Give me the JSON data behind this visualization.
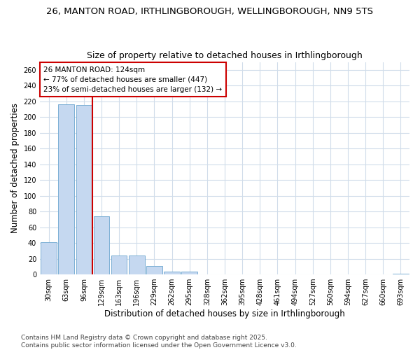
{
  "title_line1": "26, MANTON ROAD, IRTHLINGBOROUGH, WELLINGBOROUGH, NN9 5TS",
  "title_line2": "Size of property relative to detached houses in Irthlingborough",
  "xlabel": "Distribution of detached houses by size in Irthlingborough",
  "ylabel": "Number of detached properties",
  "categories": [
    "30sqm",
    "63sqm",
    "96sqm",
    "129sqm",
    "163sqm",
    "196sqm",
    "229sqm",
    "262sqm",
    "295sqm",
    "328sqm",
    "362sqm",
    "395sqm",
    "428sqm",
    "461sqm",
    "494sqm",
    "527sqm",
    "560sqm",
    "594sqm",
    "627sqm",
    "660sqm",
    "693sqm"
  ],
  "values": [
    41,
    216,
    215,
    74,
    24,
    24,
    11,
    4,
    4,
    0,
    0,
    0,
    0,
    0,
    0,
    0,
    0,
    0,
    0,
    0,
    1
  ],
  "bar_color": "#c5d8f0",
  "bar_edge_color": "#7bafd4",
  "vline_color": "#cc0000",
  "vline_x": 2.5,
  "annotation_text": "26 MANTON ROAD: 124sqm\n← 77% of detached houses are smaller (447)\n23% of semi-detached houses are larger (132) →",
  "annotation_box_color": "#ffffff",
  "annotation_box_edge": "#cc0000",
  "ylim": [
    0,
    270
  ],
  "yticks": [
    0,
    20,
    40,
    60,
    80,
    100,
    120,
    140,
    160,
    180,
    200,
    220,
    240,
    260
  ],
  "footer_line1": "Contains HM Land Registry data © Crown copyright and database right 2025.",
  "footer_line2": "Contains public sector information licensed under the Open Government Licence v3.0.",
  "background_color": "#ffffff",
  "grid_color": "#d0dcea",
  "title_fontsize": 9.5,
  "subtitle_fontsize": 9,
  "tick_fontsize": 7,
  "ylabel_fontsize": 8.5,
  "xlabel_fontsize": 8.5,
  "annotation_fontsize": 7.5,
  "footer_fontsize": 6.5
}
